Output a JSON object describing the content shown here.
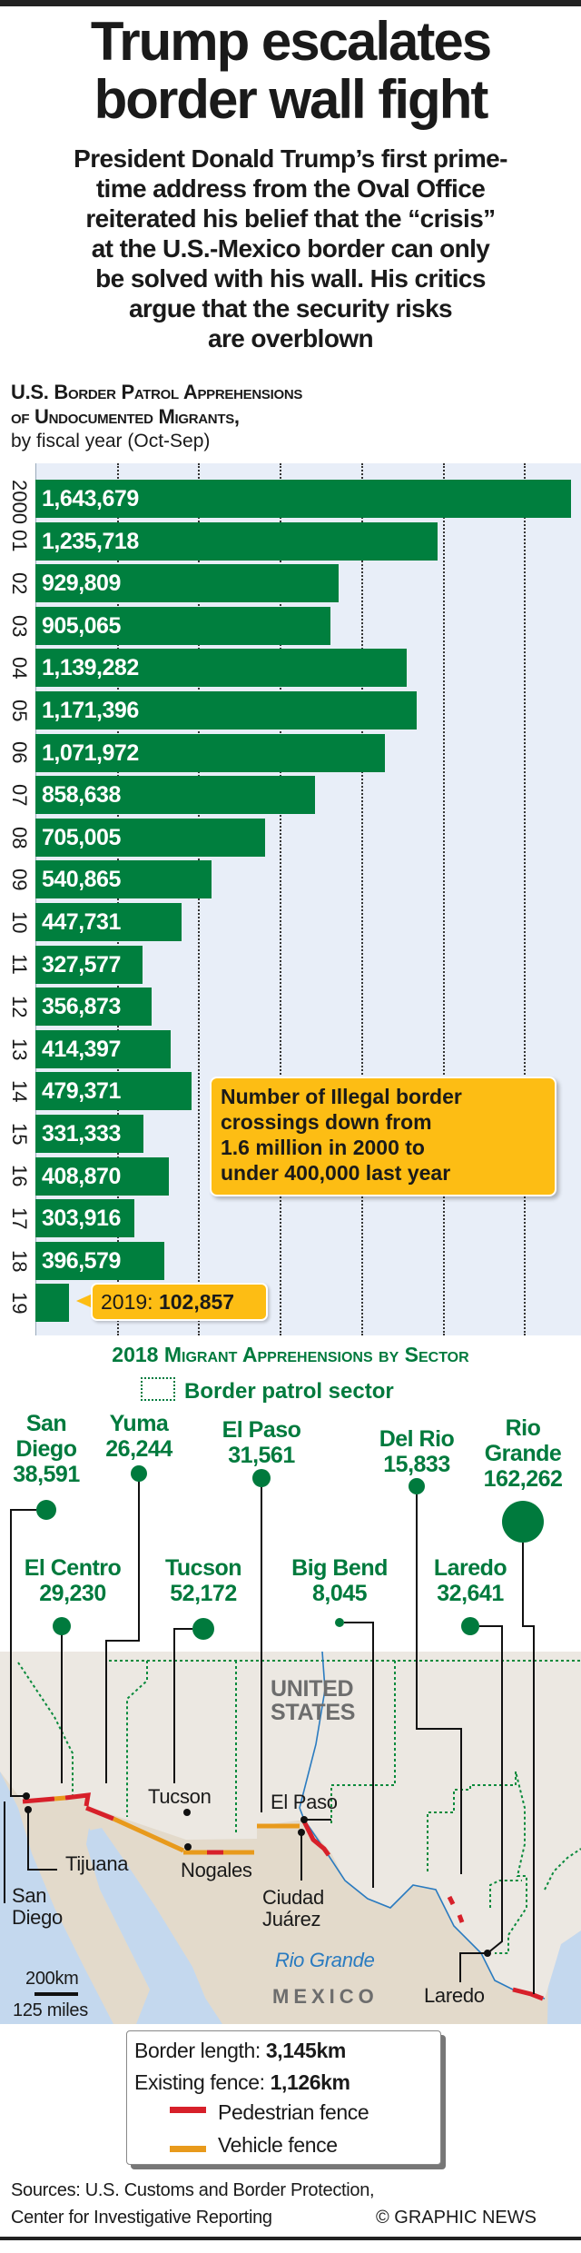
{
  "header": {
    "title_lines": [
      "Trump escalates",
      "border wall fight"
    ],
    "subhead_lines": [
      "President Donald Trump’s first prime-",
      "time address from the Oval Office",
      "reiterated his belief that the “crisis”",
      "at the U.S.-Mexico border can only",
      "be solved with his wall. His critics",
      "argue that the security risks",
      "are overblown"
    ]
  },
  "chart_data": {
    "type": "bar",
    "orientation": "horizontal",
    "title": "U.S. Border Patrol Apprehensions of Undocumented Migrants,",
    "title_lines": [
      "U.S. Border Patrol Apprehensions",
      "of Undocumented Migrants,"
    ],
    "subtitle": "by fiscal year (Oct-Sep)",
    "categories": [
      "2000",
      "01",
      "02",
      "03",
      "04",
      "05",
      "06",
      "07",
      "08",
      "09",
      "10",
      "11",
      "12",
      "13",
      "14",
      "15",
      "16",
      "17",
      "18",
      "19"
    ],
    "values": [
      1643679,
      1235718,
      929809,
      905065,
      1139282,
      1171396,
      1071972,
      858638,
      705005,
      540865,
      447731,
      327577,
      356873,
      414397,
      479371,
      331333,
      408870,
      303916,
      396579,
      102857
    ],
    "value_labels": [
      "1,643,679",
      "1,235,718",
      "929,809",
      "905,065",
      "1,139,282",
      "1,171,396",
      "1,071,972",
      "858,638",
      "705,005",
      "540,865",
      "447,731",
      "327,577",
      "356,873",
      "414,397",
      "479,371",
      "331,333",
      "408,870",
      "303,916",
      "396,579",
      ""
    ],
    "xlim": [
      0,
      1650000
    ],
    "grid_step": 250000,
    "grid": true,
    "annotation": "Number of Illegal border crossings down from 1.6 million in 2000 to under 400,000 last year",
    "annotation_lines": [
      "Number of Illegal border",
      "crossings down from",
      "1.6 million in 2000 to",
      "under 400,000 last year"
    ],
    "callout_year": "2019:",
    "callout_value": "102,857",
    "bar_color": "#007f3e"
  },
  "sectors": {
    "title": "2018 Migrant Apprehensions by Sector",
    "legend": "Border patrol sector",
    "items": [
      {
        "name_lines": [
          "San",
          "Diego"
        ],
        "value": "38,591",
        "count": 38591
      },
      {
        "name_lines": [
          "Yuma"
        ],
        "value": "26,244",
        "count": 26244
      },
      {
        "name_lines": [
          "El Paso"
        ],
        "value": "31,561",
        "count": 31561
      },
      {
        "name_lines": [
          "Del Rio"
        ],
        "value": "15,833",
        "count": 15833
      },
      {
        "name_lines": [
          "Rio",
          "Grande"
        ],
        "value": "162,262",
        "count": 162262
      },
      {
        "name_lines": [
          "El Centro"
        ],
        "value": "29,230",
        "count": 29230
      },
      {
        "name_lines": [
          "Tucson"
        ],
        "value": "52,172",
        "count": 52172
      },
      {
        "name_lines": [
          "Big Bend"
        ],
        "value": "8,045",
        "count": 8045
      },
      {
        "name_lines": [
          "Laredo"
        ],
        "value": "32,641",
        "count": 32641
      }
    ]
  },
  "map": {
    "country_us": [
      "UNITED",
      "STATES"
    ],
    "country_mx": "MEXICO",
    "river": "Rio Grande",
    "cities": {
      "tucson": "Tucson",
      "nogales": "Nogales",
      "el_paso": "El Paso",
      "ciudad_juarez": [
        "Ciudad",
        "Juárez"
      ],
      "tijuana": "Tijuana",
      "san_diego": [
        "San",
        "Diego"
      ],
      "laredo": "Laredo"
    },
    "scale_km": "200km",
    "scale_miles": "125 miles",
    "colors": {
      "pedestrian": "#d7202a",
      "vehicle": "#e89a1c",
      "sector": "#0a8a3c",
      "river": "#2a7bc0"
    }
  },
  "legend": {
    "border_length_label": "Border length:",
    "border_length_value": "3,145km",
    "fence_label": "Existing fence:",
    "fence_value": "1,126km",
    "pedestrian": "Pedestrian fence",
    "vehicle": "Vehicle fence"
  },
  "footer": {
    "sources_lines": [
      "Sources: U.S. Customs and Border Protection,",
      "Center for Investigative Reporting"
    ],
    "credit": "© GRAPHIC NEWS"
  }
}
